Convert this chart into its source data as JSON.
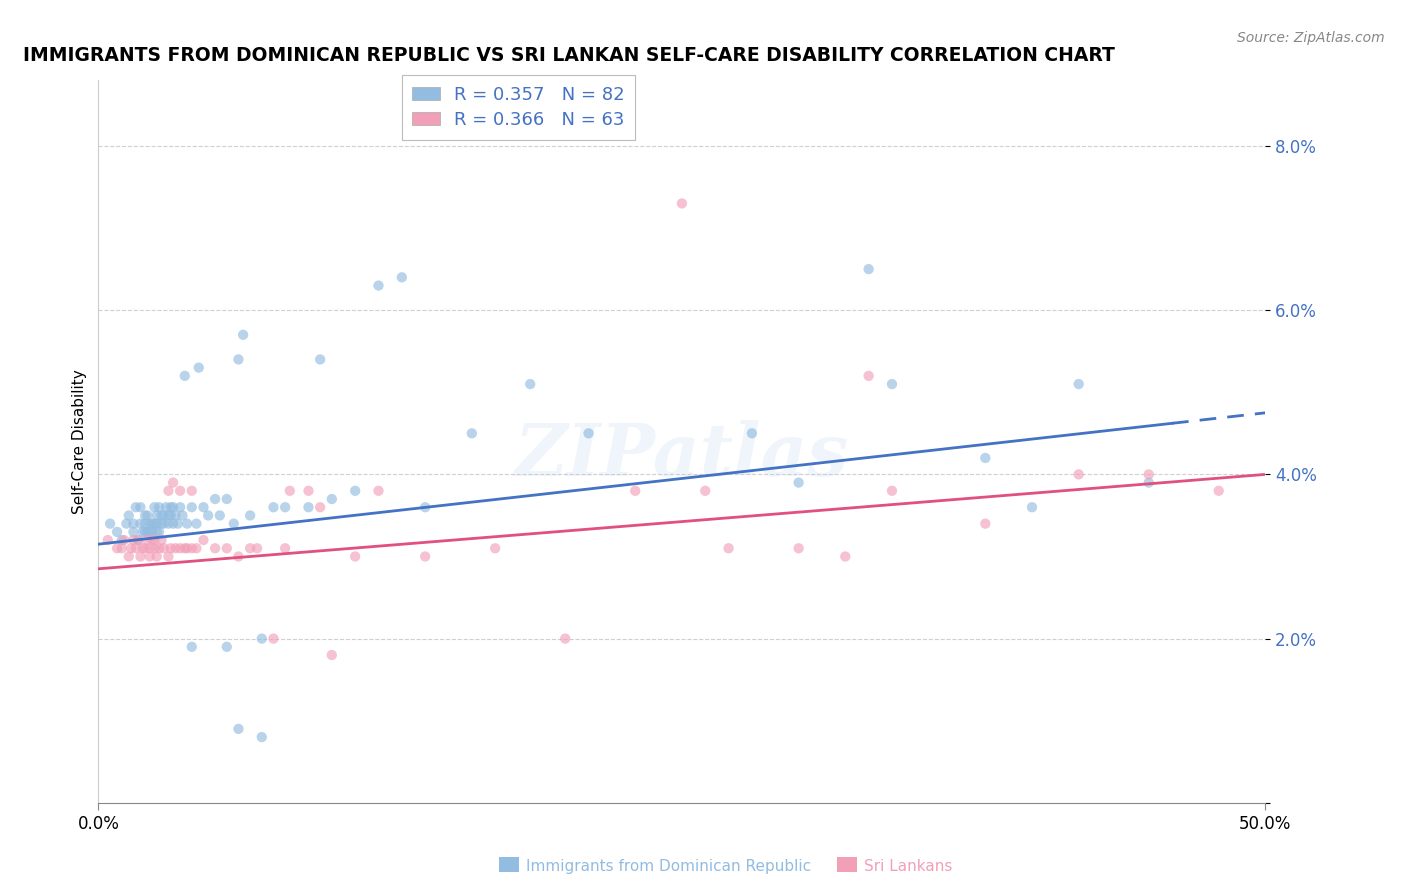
{
  "title": "IMMIGRANTS FROM DOMINICAN REPUBLIC VS SRI LANKAN SELF-CARE DISABILITY CORRELATION CHART",
  "source": "Source: ZipAtlas.com",
  "ylabel": "Self-Care Disability",
  "xlim": [
    0.0,
    0.5
  ],
  "ylim": [
    0.0,
    0.088
  ],
  "watermark": "ZIPatlas",
  "legend_entry1": "R = 0.357   N = 82",
  "legend_entry2": "R = 0.366   N = 63",
  "series1_color": "#92bce0",
  "series2_color": "#f2a0b8",
  "trendline1_color": "#4472c4",
  "trendline2_color": "#e05080",
  "marker_size": 55,
  "marker_alpha": 0.65,
  "series1_x": [
    0.005,
    0.008,
    0.01,
    0.012,
    0.013,
    0.015,
    0.015,
    0.016,
    0.017,
    0.018,
    0.018,
    0.019,
    0.02,
    0.02,
    0.02,
    0.021,
    0.021,
    0.022,
    0.022,
    0.023,
    0.023,
    0.024,
    0.024,
    0.025,
    0.025,
    0.025,
    0.026,
    0.026,
    0.027,
    0.027,
    0.028,
    0.028,
    0.029,
    0.03,
    0.03,
    0.031,
    0.031,
    0.032,
    0.032,
    0.033,
    0.034,
    0.035,
    0.036,
    0.037,
    0.038,
    0.04,
    0.042,
    0.043,
    0.045,
    0.047,
    0.05,
    0.052,
    0.055,
    0.058,
    0.06,
    0.062,
    0.065,
    0.07,
    0.075,
    0.08,
    0.09,
    0.095,
    0.1,
    0.11,
    0.12,
    0.13,
    0.14,
    0.16,
    0.185,
    0.21,
    0.28,
    0.3,
    0.33,
    0.34,
    0.38,
    0.4,
    0.42,
    0.45,
    0.04,
    0.055,
    0.06,
    0.07
  ],
  "series1_y": [
    0.034,
    0.033,
    0.032,
    0.034,
    0.035,
    0.034,
    0.033,
    0.036,
    0.032,
    0.034,
    0.036,
    0.033,
    0.035,
    0.033,
    0.034,
    0.033,
    0.035,
    0.033,
    0.034,
    0.033,
    0.034,
    0.036,
    0.034,
    0.035,
    0.033,
    0.034,
    0.036,
    0.033,
    0.035,
    0.034,
    0.034,
    0.035,
    0.036,
    0.035,
    0.034,
    0.036,
    0.035,
    0.034,
    0.036,
    0.035,
    0.034,
    0.036,
    0.035,
    0.052,
    0.034,
    0.036,
    0.034,
    0.053,
    0.036,
    0.035,
    0.037,
    0.035,
    0.037,
    0.034,
    0.054,
    0.057,
    0.035,
    0.02,
    0.036,
    0.036,
    0.036,
    0.054,
    0.037,
    0.038,
    0.063,
    0.064,
    0.036,
    0.045,
    0.051,
    0.045,
    0.045,
    0.039,
    0.065,
    0.051,
    0.042,
    0.036,
    0.051,
    0.039,
    0.019,
    0.019,
    0.009,
    0.008
  ],
  "series2_x": [
    0.004,
    0.008,
    0.01,
    0.011,
    0.013,
    0.014,
    0.015,
    0.016,
    0.017,
    0.018,
    0.019,
    0.02,
    0.021,
    0.022,
    0.022,
    0.023,
    0.024,
    0.024,
    0.025,
    0.026,
    0.027,
    0.028,
    0.03,
    0.03,
    0.031,
    0.032,
    0.033,
    0.035,
    0.035,
    0.037,
    0.038,
    0.04,
    0.04,
    0.042,
    0.045,
    0.05,
    0.055,
    0.06,
    0.065,
    0.068,
    0.075,
    0.08,
    0.082,
    0.09,
    0.095,
    0.1,
    0.11,
    0.12,
    0.14,
    0.17,
    0.2,
    0.23,
    0.27,
    0.3,
    0.32,
    0.34,
    0.38,
    0.42,
    0.45,
    0.48,
    0.25,
    0.26,
    0.33
  ],
  "series2_y": [
    0.032,
    0.031,
    0.031,
    0.032,
    0.03,
    0.031,
    0.032,
    0.031,
    0.032,
    0.03,
    0.031,
    0.031,
    0.032,
    0.03,
    0.031,
    0.032,
    0.031,
    0.032,
    0.03,
    0.031,
    0.032,
    0.031,
    0.03,
    0.038,
    0.031,
    0.039,
    0.031,
    0.038,
    0.031,
    0.031,
    0.031,
    0.038,
    0.031,
    0.031,
    0.032,
    0.031,
    0.031,
    0.03,
    0.031,
    0.031,
    0.02,
    0.031,
    0.038,
    0.038,
    0.036,
    0.018,
    0.03,
    0.038,
    0.03,
    0.031,
    0.02,
    0.038,
    0.031,
    0.031,
    0.03,
    0.038,
    0.034,
    0.04,
    0.04,
    0.038,
    0.073,
    0.038,
    0.052
  ],
  "trendline1_y0": 0.0315,
  "trendline1_y1": 0.0475,
  "trendline1_solid_end": 0.46,
  "trendline2_y0": 0.0285,
  "trendline2_y1": 0.04,
  "yticks": [
    0.0,
    0.02,
    0.04,
    0.06,
    0.08
  ],
  "ytick_labels": [
    "",
    "2.0%",
    "4.0%",
    "6.0%",
    "8.0%"
  ],
  "tick_color": "#4472c4",
  "grid_color": "#d0d0d0",
  "grid_linestyle": "--",
  "background_color": "#ffffff",
  "title_fontsize": 13.5,
  "source_fontsize": 10,
  "axis_label_fontsize": 11,
  "tick_fontsize": 12,
  "legend_fontsize": 13,
  "bottom_label1": "Immigrants from Dominican Republic",
  "bottom_label2": "Sri Lankans"
}
